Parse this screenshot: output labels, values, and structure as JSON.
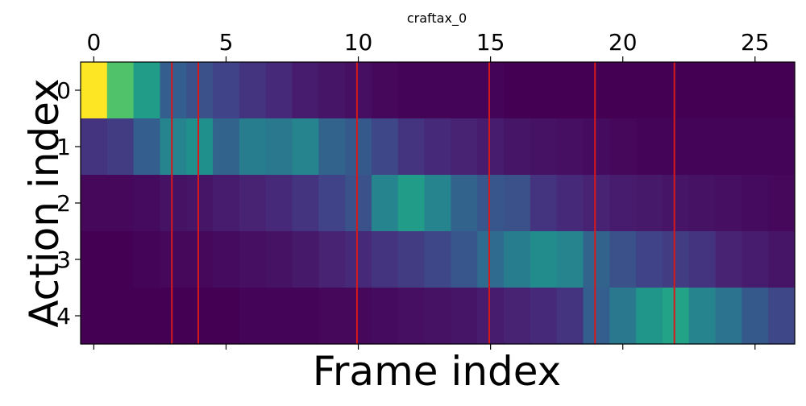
{
  "chart_data": {
    "type": "heatmap",
    "title": "craftax_0",
    "xlabel": "Frame index",
    "ylabel": "Action index",
    "x_tick_labels": [
      "0",
      "5",
      "10",
      "15",
      "20",
      "25"
    ],
    "x_ticks": [
      0,
      5,
      10,
      15,
      20,
      25
    ],
    "y_tick_labels": [
      "0",
      "1",
      "2",
      "3",
      "4"
    ],
    "y_ticks": [
      0,
      1,
      2,
      3,
      4
    ],
    "x_axis_position": "top",
    "xlim": [
      -0.5,
      26.5
    ],
    "ylim": [
      4.5,
      -0.5
    ],
    "colormap": "viridis",
    "value_range": [
      0,
      1
    ],
    "grid": false,
    "rows": [
      [
        1.0,
        0.72,
        0.55,
        0.3,
        0.25,
        0.2,
        0.15,
        0.12,
        0.08,
        0.06,
        0.04,
        0.02,
        0.01,
        0.01,
        0.01,
        0.01,
        0.0,
        0.0,
        0.0,
        0.0,
        0.0,
        0.0,
        0.0,
        0.0,
        0.0,
        0.0,
        0.0
      ],
      [
        0.15,
        0.18,
        0.3,
        0.45,
        0.5,
        0.32,
        0.42,
        0.4,
        0.45,
        0.32,
        0.28,
        0.22,
        0.15,
        0.12,
        0.1,
        0.08,
        0.06,
        0.05,
        0.04,
        0.03,
        0.02,
        0.01,
        0.01,
        0.01,
        0.01,
        0.01,
        0.01
      ],
      [
        0.02,
        0.02,
        0.03,
        0.05,
        0.06,
        0.08,
        0.1,
        0.12,
        0.15,
        0.2,
        0.25,
        0.45,
        0.55,
        0.45,
        0.32,
        0.27,
        0.25,
        0.15,
        0.12,
        0.1,
        0.08,
        0.07,
        0.06,
        0.05,
        0.04,
        0.03,
        0.02
      ],
      [
        0.0,
        0.0,
        0.01,
        0.02,
        0.02,
        0.03,
        0.04,
        0.05,
        0.07,
        0.1,
        0.12,
        0.15,
        0.18,
        0.22,
        0.27,
        0.35,
        0.42,
        0.48,
        0.45,
        0.32,
        0.25,
        0.2,
        0.18,
        0.15,
        0.1,
        0.08,
        0.06
      ],
      [
        0.0,
        0.0,
        0.0,
        0.0,
        0.0,
        0.0,
        0.01,
        0.01,
        0.01,
        0.02,
        0.02,
        0.03,
        0.04,
        0.05,
        0.06,
        0.08,
        0.1,
        0.12,
        0.15,
        0.3,
        0.4,
        0.52,
        0.58,
        0.45,
        0.38,
        0.28,
        0.22
      ]
    ],
    "vertical_lines": {
      "x": [
        2.95,
        3.95,
        9.95,
        14.95,
        18.95,
        21.95
      ],
      "color": "#d7191c"
    }
  }
}
